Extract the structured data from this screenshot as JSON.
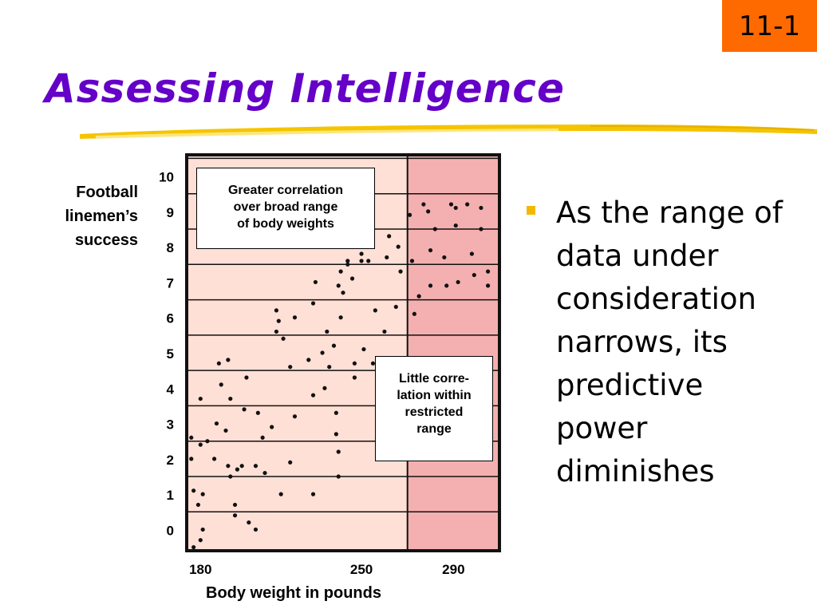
{
  "slide_number": "11-1",
  "title": "Assessing Intelligence",
  "bullet": {
    "lines": [
      "As the range of",
      "data under",
      "consideration",
      "narrows, its",
      "predictive",
      "power",
      "diminishes"
    ]
  },
  "annotations": {
    "greater": [
      "Greater correlation",
      "over broad range",
      "of body weights"
    ],
    "little": [
      "Little corre-",
      "lation within",
      "restricted",
      "range"
    ]
  },
  "colors": {
    "title": "#6400c8",
    "slide_number_bg": "#ff6a00",
    "bullet": "#f5b800",
    "plot_bg": "#ffe0d6",
    "restricted_bg": "#f4b0b0"
  },
  "chart_data": {
    "type": "scatter",
    "xlabel": "Body weight in pounds",
    "ylabel": [
      "Football",
      "linemen’s",
      "success"
    ],
    "x_ticks": [
      {
        "value": 180,
        "label": "180"
      },
      {
        "value": 250,
        "label": "250"
      },
      {
        "value": 290,
        "label": "290"
      }
    ],
    "y_ticks": [
      "0",
      "1",
      "2",
      "3",
      "4",
      "5",
      "6",
      "7",
      "8",
      "9",
      "10"
    ],
    "xlim": [
      174,
      310
    ],
    "ylim": [
      -0.6,
      10.6
    ],
    "restricted_range": [
      270,
      310
    ],
    "grid": "horizontal",
    "points": [
      [
        177,
        -0.5
      ],
      [
        180,
        -0.3
      ],
      [
        181,
        0
      ],
      [
        179,
        0.7
      ],
      [
        181,
        1
      ],
      [
        177,
        1.1
      ],
      [
        176,
        2
      ],
      [
        180,
        2.4
      ],
      [
        176,
        2.6
      ],
      [
        180,
        3.7
      ],
      [
        183,
        2.5
      ],
      [
        186,
        2
      ],
      [
        191,
        2.8
      ],
      [
        187,
        3
      ],
      [
        188,
        4.7
      ],
      [
        189,
        4.1
      ],
      [
        192,
        4.8
      ],
      [
        193,
        3.7
      ],
      [
        192,
        1.8
      ],
      [
        193,
        1.5
      ],
      [
        196,
        1.7
      ],
      [
        198,
        1.8
      ],
      [
        195,
        0.7
      ],
      [
        195,
        0.4
      ],
      [
        201,
        0.2
      ],
      [
        204,
        0
      ],
      [
        199,
        3.4
      ],
      [
        200,
        4.3
      ],
      [
        205,
        3.3
      ],
      [
        204,
        1.8
      ],
      [
        207,
        2.6
      ],
      [
        208,
        1.6
      ],
      [
        211,
        2.9
      ],
      [
        213,
        5.6
      ],
      [
        213,
        6.2
      ],
      [
        214,
        5.9
      ],
      [
        216,
        5.4
      ],
      [
        219,
        4.6
      ],
      [
        219,
        1.9
      ],
      [
        221,
        3.2
      ],
      [
        221,
        6
      ],
      [
        215,
        1
      ],
      [
        227,
        4.8
      ],
      [
        229,
        6.4
      ],
      [
        229,
        3.8
      ],
      [
        229,
        1
      ],
      [
        230,
        7
      ],
      [
        233,
        5
      ],
      [
        234,
        4
      ],
      [
        235,
        5.6
      ],
      [
        236,
        4.6
      ],
      [
        238,
        5.2
      ],
      [
        239,
        3.3
      ],
      [
        239,
        2.7
      ],
      [
        240,
        2.2
      ],
      [
        240,
        1.5
      ],
      [
        240,
        6.9
      ],
      [
        241,
        7.3
      ],
      [
        241,
        6
      ],
      [
        242,
        6.7
      ],
      [
        243,
        8
      ],
      [
        244,
        7.5
      ],
      [
        244,
        7.6
      ],
      [
        246,
        7.1
      ],
      [
        247,
        4.7
      ],
      [
        247,
        4.3
      ],
      [
        250,
        7.6
      ],
      [
        250,
        7.8
      ],
      [
        251,
        5.1
      ],
      [
        253,
        7.6
      ],
      [
        255,
        4.7
      ],
      [
        255,
        8
      ],
      [
        256,
        6.2
      ],
      [
        260,
        5.6
      ],
      [
        261,
        7.7
      ],
      [
        262,
        8.3
      ],
      [
        265,
        6.3
      ],
      [
        266,
        8
      ],
      [
        267,
        7.3
      ],
      [
        271,
        8.9
      ],
      [
        272,
        7.6
      ],
      [
        273,
        6.1
      ],
      [
        275,
        6.6
      ],
      [
        277,
        9.2
      ],
      [
        279,
        9
      ],
      [
        280,
        6.9
      ],
      [
        280,
        7.9
      ],
      [
        282,
        8.5
      ],
      [
        286,
        7.7
      ],
      [
        287,
        6.9
      ],
      [
        289,
        9.2
      ],
      [
        291,
        8.6
      ],
      [
        291,
        9.1
      ],
      [
        292,
        7
      ],
      [
        296,
        9.2
      ],
      [
        298,
        7.8
      ],
      [
        299,
        7.2
      ],
      [
        302,
        8.5
      ],
      [
        302,
        9.1
      ],
      [
        305,
        7.3
      ],
      [
        305,
        6.9
      ]
    ]
  }
}
